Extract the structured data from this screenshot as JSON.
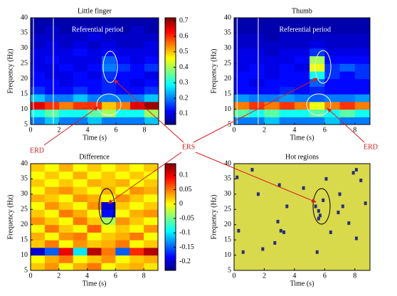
{
  "chart_data": [
    {
      "type": "heatmap",
      "title": "Little finger",
      "annotation": "Referential period",
      "xlabel": "Time (s)",
      "ylabel": "Frequency (Hz)",
      "x": [
        0,
        1,
        2,
        3,
        4,
        5,
        6,
        7,
        8,
        9
      ],
      "y": [
        5,
        7.5,
        10,
        12.5,
        15,
        17.5,
        20,
        22.5,
        25,
        27.5,
        30,
        32.5,
        35,
        37.5,
        40
      ],
      "z": [
        [
          0.2,
          0.25,
          0.2,
          0.2,
          0.25,
          0.2,
          0.2,
          0.2,
          0.25
        ],
        [
          0.3,
          0.35,
          0.3,
          0.3,
          0.35,
          0.4,
          0.3,
          0.3,
          0.4
        ],
        [
          0.65,
          0.6,
          0.55,
          0.6,
          0.6,
          0.5,
          0.55,
          0.65,
          0.7
        ],
        [
          0.25,
          0.2,
          0.2,
          0.25,
          0.2,
          0.2,
          0.2,
          0.2,
          0.25
        ],
        [
          0.15,
          0.12,
          0.12,
          0.15,
          0.12,
          0.14,
          0.12,
          0.12,
          0.15
        ],
        [
          0.12,
          0.12,
          0.1,
          0.12,
          0.12,
          0.14,
          0.12,
          0.1,
          0.12
        ],
        [
          0.12,
          0.1,
          0.1,
          0.12,
          0.1,
          0.15,
          0.12,
          0.12,
          0.1
        ],
        [
          0.1,
          0.1,
          0.12,
          0.1,
          0.12,
          0.2,
          0.15,
          0.12,
          0.15
        ],
        [
          0.1,
          0.12,
          0.1,
          0.1,
          0.1,
          0.18,
          0.12,
          0.1,
          0.12
        ],
        [
          0.1,
          0.1,
          0.1,
          0.12,
          0.1,
          0.12,
          0.1,
          0.1,
          0.1
        ],
        [
          0.08,
          0.1,
          0.08,
          0.1,
          0.08,
          0.1,
          0.08,
          0.08,
          0.1
        ],
        [
          0.08,
          0.08,
          0.08,
          0.08,
          0.1,
          0.08,
          0.08,
          0.08,
          0.08
        ],
        [
          0.06,
          0.08,
          0.06,
          0.08,
          0.06,
          0.08,
          0.06,
          0.08,
          0.06
        ],
        [
          0.06,
          0.06,
          0.06,
          0.06,
          0.06,
          0.06,
          0.06,
          0.06,
          0.06
        ]
      ],
      "xlim": [
        0,
        9
      ],
      "ylim": [
        5,
        40
      ],
      "xticks": [
        0,
        2,
        4,
        6,
        8
      ],
      "yticks": [
        5,
        10,
        15,
        20,
        25,
        30,
        35,
        40
      ],
      "clim": [
        0.03,
        0.72
      ],
      "cticks": [
        0.1,
        0.2,
        0.3,
        0.4,
        0.5,
        0.6,
        0.7
      ]
    },
    {
      "type": "heatmap",
      "title": "Thumb",
      "annotation": "Referential period",
      "xlabel": "Time (s)",
      "ylabel": "Frequency (Hz)",
      "x": [
        0,
        1,
        2,
        3,
        4,
        5,
        6,
        7,
        8,
        9
      ],
      "y": [
        5,
        7.5,
        10,
        12.5,
        15,
        17.5,
        20,
        22.5,
        25,
        27.5,
        30,
        32.5,
        35,
        37.5,
        40
      ],
      "z": [
        [
          0.2,
          0.2,
          0.25,
          0.2,
          0.2,
          0.2,
          0.25,
          0.2,
          0.2
        ],
        [
          0.35,
          0.3,
          0.35,
          0.3,
          0.3,
          0.35,
          0.3,
          0.35,
          0.3
        ],
        [
          0.55,
          0.6,
          0.55,
          0.6,
          0.55,
          0.45,
          0.55,
          0.6,
          0.55
        ],
        [
          0.22,
          0.2,
          0.2,
          0.22,
          0.2,
          0.18,
          0.2,
          0.2,
          0.22
        ],
        [
          0.12,
          0.12,
          0.12,
          0.14,
          0.12,
          0.14,
          0.12,
          0.12,
          0.12
        ],
        [
          0.12,
          0.1,
          0.12,
          0.12,
          0.12,
          0.18,
          0.12,
          0.12,
          0.12
        ],
        [
          0.12,
          0.12,
          0.1,
          0.12,
          0.12,
          0.3,
          0.15,
          0.12,
          0.15
        ],
        [
          0.1,
          0.12,
          0.1,
          0.12,
          0.1,
          0.45,
          0.15,
          0.18,
          0.15
        ],
        [
          0.1,
          0.1,
          0.1,
          0.1,
          0.12,
          0.4,
          0.12,
          0.12,
          0.12
        ],
        [
          0.1,
          0.1,
          0.08,
          0.1,
          0.1,
          0.15,
          0.1,
          0.1,
          0.1
        ],
        [
          0.08,
          0.08,
          0.08,
          0.08,
          0.08,
          0.1,
          0.08,
          0.08,
          0.08
        ],
        [
          0.08,
          0.08,
          0.06,
          0.08,
          0.08,
          0.08,
          0.08,
          0.08,
          0.08
        ],
        [
          0.06,
          0.06,
          0.06,
          0.06,
          0.06,
          0.06,
          0.06,
          0.06,
          0.06
        ],
        [
          0.06,
          0.06,
          0.06,
          0.06,
          0.06,
          0.06,
          0.06,
          0.06,
          0.06
        ]
      ],
      "xlim": [
        0,
        9
      ],
      "ylim": [
        5,
        40
      ]
    },
    {
      "type": "heatmap",
      "title": "Difference",
      "xlabel": "Time (s)",
      "ylabel": "Frequency (Hz)",
      "x": [
        0,
        1,
        2,
        3,
        4,
        5,
        6,
        7,
        8,
        9
      ],
      "y": [
        5,
        7.5,
        10,
        12.5,
        15,
        17.5,
        20,
        22.5,
        25,
        27.5,
        30,
        32.5,
        35,
        37.5,
        40
      ],
      "z": [
        [
          0.02,
          0.04,
          0.0,
          0.03,
          0.05,
          0.0,
          0.02,
          0.03,
          0.01
        ],
        [
          0.0,
          0.03,
          0.05,
          0.0,
          0.02,
          0.04,
          0.0,
          0.02,
          0.03
        ],
        [
          -0.2,
          -0.15,
          0.1,
          -0.1,
          0.12,
          0.05,
          -0.15,
          0.08,
          0.12
        ],
        [
          0.02,
          0.05,
          0.0,
          0.04,
          0.02,
          0.03,
          0.05,
          0.0,
          0.02
        ],
        [
          0.03,
          0.0,
          0.04,
          0.05,
          0.0,
          0.02,
          0.03,
          0.05,
          0.0
        ],
        [
          0.0,
          0.05,
          0.02,
          0.0,
          0.06,
          0.0,
          0.02,
          0.0,
          0.04
        ],
        [
          0.04,
          0.02,
          0.0,
          0.05,
          0.02,
          -0.03,
          0.04,
          0.02,
          0.0
        ],
        [
          0.02,
          0.0,
          0.05,
          0.03,
          0.0,
          -0.18,
          0.0,
          0.03,
          0.04
        ],
        [
          0.0,
          0.04,
          0.02,
          0.0,
          0.04,
          -0.2,
          0.02,
          0.0,
          0.02
        ],
        [
          0.03,
          0.02,
          0.0,
          0.04,
          0.03,
          0.0,
          0.04,
          0.02,
          0.0
        ],
        [
          0.0,
          0.03,
          0.04,
          0.02,
          0.0,
          0.03,
          0.0,
          0.04,
          0.03
        ],
        [
          0.02,
          0.0,
          0.02,
          0.0,
          0.03,
          0.02,
          0.03,
          0.0,
          0.02
        ],
        [
          0.0,
          0.02,
          0.0,
          0.03,
          0.0,
          0.02,
          0.0,
          0.02,
          0.0
        ],
        [
          0.02,
          0.0,
          0.03,
          0.0,
          0.02,
          0.0,
          0.02,
          0.0,
          0.02
        ]
      ],
      "xlim": [
        0,
        9
      ],
      "ylim": [
        5,
        40
      ],
      "clim": [
        -0.23,
        0.14
      ],
      "cticks": [
        0.1,
        0.05,
        0,
        -0.05,
        -0.1,
        -0.15,
        -0.2
      ]
    },
    {
      "type": "cells",
      "title": "Hot regions",
      "xlabel": "Time (s)",
      "ylabel": "Frequency (Hz)",
      "background": "#d9d94c",
      "color": "#26307a",
      "x": [
        0.2,
        0.3,
        0.6,
        1.2,
        1.6,
        2.7,
        3.0,
        3.3,
        3.5,
        4.6,
        5.4,
        5.6,
        5.7,
        5.5,
        5.6,
        5.9,
        6.1,
        6.4,
        6.9,
        7.0,
        7.2,
        7.6,
        8.1,
        8.4,
        8.7,
        8.1,
        7.9,
        3.1,
        2.9,
        1.9
      ],
      "y": [
        35.5,
        18,
        11,
        38,
        30,
        14,
        33,
        17.5,
        26,
        32,
        26,
        24.5,
        23,
        11,
        22,
        28,
        35,
        17.5,
        24,
        30,
        26,
        20.5,
        38,
        34.5,
        27,
        15.5,
        37,
        18,
        21,
        12
      ],
      "xlim": [
        0,
        9
      ],
      "ylim": [
        5,
        40
      ]
    }
  ],
  "annotations": [
    "ERD",
    "ERS",
    "ERD"
  ]
}
